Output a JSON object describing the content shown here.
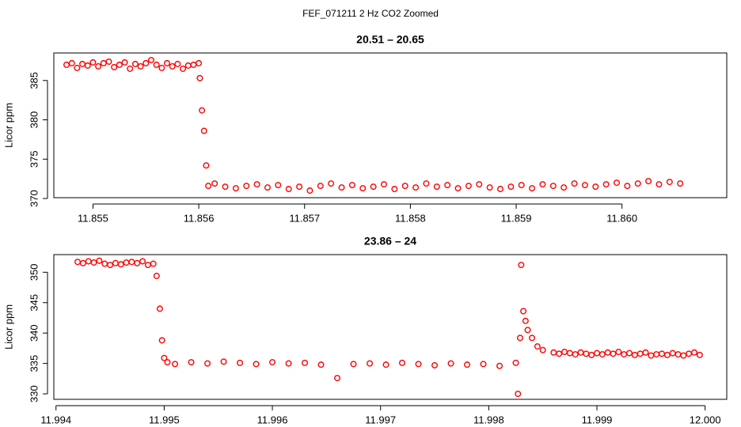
{
  "title": "FEF_071211  2 Hz CO2 Zoomed",
  "chart_data": [
    {
      "type": "scatter",
      "title": "20.51 – 20.65",
      "y_label": "Licor ppm",
      "color": "#ff0000",
      "x": [
        11.85475,
        11.8548,
        11.85485,
        11.8549,
        11.85495,
        11.855,
        11.85505,
        11.8551,
        11.85515,
        11.8552,
        11.85525,
        11.8553,
        11.85535,
        11.8554,
        11.85545,
        11.8555,
        11.85555,
        11.8556,
        11.85565,
        11.8557,
        11.85575,
        11.8558,
        11.85585,
        11.8559,
        11.85595,
        11.856,
        11.85601,
        11.85603,
        11.85605,
        11.85607,
        11.85609,
        11.85615,
        11.85625,
        11.85635,
        11.85645,
        11.85655,
        11.85665,
        11.85675,
        11.85685,
        11.85695,
        11.85705,
        11.85715,
        11.85725,
        11.85735,
        11.85745,
        11.85755,
        11.85765,
        11.85775,
        11.85785,
        11.85795,
        11.85805,
        11.85815,
        11.85825,
        11.85835,
        11.85845,
        11.85855,
        11.85865,
        11.85875,
        11.85885,
        11.85895,
        11.85905,
        11.85915,
        11.85925,
        11.85935,
        11.85945,
        11.85955,
        11.85965,
        11.85975,
        11.85985,
        11.85995,
        11.86005,
        11.86015,
        11.86025,
        11.86035,
        11.86045,
        11.86055
      ],
      "values": [
        387.0,
        387.2,
        386.6,
        387.1,
        386.9,
        387.3,
        386.8,
        387.2,
        387.4,
        386.7,
        387.0,
        387.3,
        386.5,
        387.1,
        386.8,
        387.2,
        387.6,
        387.0,
        386.6,
        387.2,
        386.8,
        387.1,
        386.5,
        386.9,
        387.0,
        387.2,
        385.3,
        381.2,
        378.6,
        374.2,
        371.6,
        371.9,
        371.5,
        371.3,
        371.6,
        371.8,
        371.4,
        371.7,
        371.2,
        371.5,
        371.0,
        371.6,
        371.9,
        371.4,
        371.7,
        371.3,
        371.5,
        371.8,
        371.2,
        371.6,
        371.4,
        371.9,
        371.5,
        371.7,
        371.3,
        371.6,
        371.8,
        371.4,
        371.2,
        371.5,
        371.7,
        371.3,
        371.8,
        371.6,
        371.4,
        371.9,
        371.7,
        371.5,
        371.8,
        372.0,
        371.6,
        371.9,
        372.2,
        371.8,
        372.1,
        371.9
      ],
      "xlim": [
        11.85463,
        11.86099
      ],
      "ylim": [
        370.1,
        388.5
      ],
      "xticks": [
        11.855,
        11.856,
        11.857,
        11.858,
        11.859,
        {
          "value": 11.86,
          "label": "11.860"
        }
      ],
      "yticks": [
        370,
        375,
        380,
        385
      ]
    },
    {
      "type": "scatter",
      "title": "23.86 – 24",
      "y_label": "Licor ppm",
      "color": "#ff0000",
      "x": [
        11.9942,
        11.99425,
        11.9943,
        11.99435,
        11.9944,
        11.99445,
        11.9945,
        11.99455,
        11.9946,
        11.99465,
        11.9947,
        11.99475,
        11.9948,
        11.99485,
        11.9949,
        11.99493,
        11.99496,
        11.99498,
        11.995,
        11.99503,
        11.9951,
        11.99525,
        11.9954,
        11.99555,
        11.9957,
        11.99585,
        11.996,
        11.99615,
        11.9963,
        11.99645,
        11.9966,
        11.99675,
        11.9969,
        11.99705,
        11.9972,
        11.99735,
        11.9975,
        11.99765,
        11.9978,
        11.99795,
        11.9981,
        11.99825,
        11.99827,
        11.99829,
        11.9983,
        11.99832,
        11.99834,
        11.99836,
        11.9984,
        11.99845,
        11.9985,
        11.9986,
        11.99865,
        11.9987,
        11.99875,
        11.9988,
        11.99885,
        11.9989,
        11.99895,
        11.999,
        11.99905,
        11.9991,
        11.99915,
        11.9992,
        11.99925,
        11.9993,
        11.99935,
        11.9994,
        11.99945,
        11.9995,
        11.99955,
        11.9996,
        11.99965,
        11.9997,
        11.99975,
        11.9998,
        11.99985,
        11.9999,
        11.99995
      ],
      "values": [
        351.7,
        351.5,
        351.8,
        351.6,
        351.9,
        351.4,
        351.2,
        351.5,
        351.3,
        351.6,
        351.7,
        351.5,
        351.8,
        351.2,
        351.4,
        349.4,
        344.0,
        338.8,
        335.9,
        335.2,
        334.9,
        335.2,
        335.0,
        335.3,
        335.1,
        334.9,
        335.2,
        335.0,
        335.1,
        334.8,
        332.6,
        334.9,
        335.0,
        334.8,
        335.1,
        334.9,
        334.7,
        335.0,
        334.8,
        334.9,
        334.6,
        335.1,
        330.0,
        339.2,
        351.2,
        343.6,
        342.0,
        340.5,
        339.2,
        337.8,
        337.2,
        336.8,
        336.6,
        336.9,
        336.7,
        336.5,
        336.8,
        336.6,
        336.4,
        336.7,
        336.5,
        336.8,
        336.6,
        336.9,
        336.5,
        336.7,
        336.4,
        336.6,
        336.8,
        336.3,
        336.5,
        336.6,
        336.4,
        336.7,
        336.5,
        336.3,
        336.6,
        336.8,
        336.4
      ],
      "xlim": [
        11.99398,
        12.0002
      ],
      "ylim": [
        329.1,
        352.9
      ],
      "xticks": [
        11.994,
        11.995,
        11.996,
        11.997,
        11.998,
        11.999,
        {
          "value": 12,
          "label": "12.000"
        }
      ],
      "yticks": [
        330,
        335,
        340,
        345,
        350
      ]
    }
  ]
}
